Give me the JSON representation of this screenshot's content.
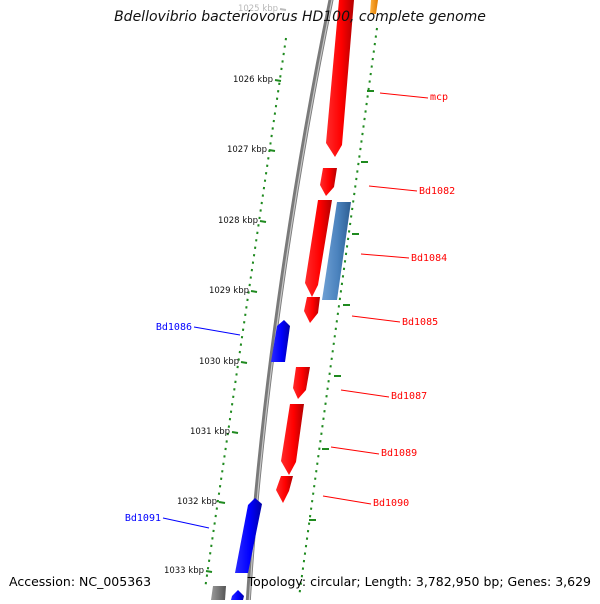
{
  "title": "Bdellovibrio bacteriovorus HD100, complete genome",
  "footer": {
    "accession": "Accession: NC_005363",
    "summary": "Topology: circular; Length: 3,782,950 bp; Genes: 3,629"
  },
  "scale_ticks": [
    {
      "label": "1025 kbp",
      "faded": true
    },
    {
      "label": "1026 kbp"
    },
    {
      "label": "1027 kbp"
    },
    {
      "label": "1028 kbp"
    },
    {
      "label": "1029 kbp"
    },
    {
      "label": "1030 kbp"
    },
    {
      "label": "1031 kbp"
    },
    {
      "label": "1032 kbp"
    },
    {
      "label": "1033 kbp"
    }
  ],
  "genes": [
    {
      "label": "mcp",
      "strand": "forward",
      "color": "#ff0000"
    },
    {
      "label": "Bd1082",
      "strand": "forward",
      "color": "#ff0000"
    },
    {
      "label": "Bd1084",
      "strand": "forward",
      "color": "#cc0000"
    },
    {
      "label": "Bd1085",
      "strand": "forward",
      "color": "#cc0000"
    },
    {
      "label": "Bd1086",
      "strand": "reverse",
      "color": "#0000ee"
    },
    {
      "label": "Bd1087",
      "strand": "forward",
      "color": "#cc0000"
    },
    {
      "label": "Bd1089",
      "strand": "forward",
      "color": "#cc0000"
    },
    {
      "label": "Bd1090",
      "strand": "forward",
      "color": "#cc0000"
    },
    {
      "label": "Bd1091",
      "strand": "reverse",
      "color": "#0000ee"
    }
  ],
  "colors": {
    "forward_gene": "#ff0000",
    "reverse_gene": "#0000ff",
    "other_feature": "#4f86c0",
    "orange_feature": "#ff9900",
    "backbone": "#7a7a7a",
    "gc_dots": "#1f8a1f"
  }
}
